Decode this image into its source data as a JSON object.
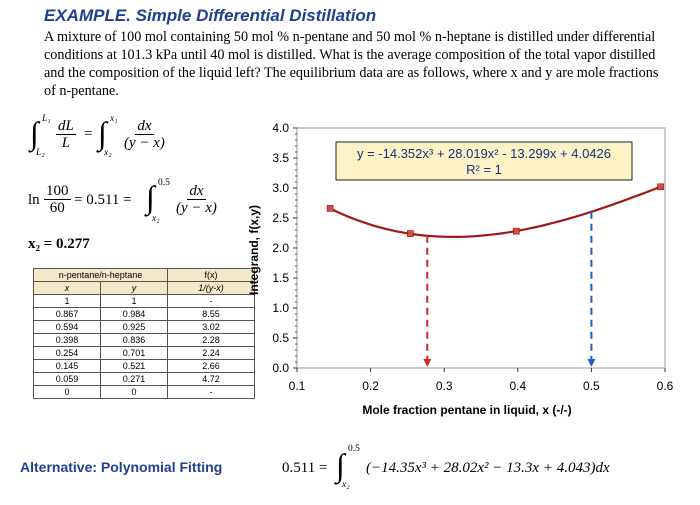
{
  "header": {
    "title": "EXAMPLE. Simple Differential Distillation",
    "problem_text": "A mixture of 100 mol containing 50 mol % n-pentane and 50 mol % n-heptane is distilled under differential conditions at 101.3 kPa until 40 mol is distilled. What is the average composition of the total vapor distilled and the composition of the liquid left? The equilibrium data are as follows, where x and y are mole fractions of n-pentane."
  },
  "equations": {
    "rayleigh": {
      "int_upper_1": "L₁",
      "int_lower_1": "L₂",
      "frac1_num": "dL",
      "frac1_den": "L",
      "int_upper_2": "x₁",
      "int_lower_2": "x₂",
      "frac2_num": "dx",
      "frac2_den": "(y − x)"
    },
    "log_eq": {
      "ln": "ln",
      "num": "100",
      "den": "60",
      "value": "= 0.511 =",
      "int_upper": "0.5",
      "int_lower": "x₂",
      "frac_num": "dx",
      "frac_den": "(y − x)"
    },
    "result": "x₂ = 0.277",
    "polynomial": {
      "lhs": "0.511 =",
      "int_upper": "0.5",
      "int_lower": "x₂",
      "integrand": "(−14.35x³ + 28.02x² − 13.3x + 4.043)dx"
    }
  },
  "table": {
    "headers": [
      "n-pentane/n-heptane",
      "f(x)"
    ],
    "subheaders": [
      "x",
      "y",
      "1/(y-x)"
    ],
    "rows": [
      [
        "1",
        "1",
        "-"
      ],
      [
        "0.867",
        "0.984",
        "8.55"
      ],
      [
        "0.594",
        "0.925",
        "3.02"
      ],
      [
        "0.398",
        "0.836",
        "2.28"
      ],
      [
        "0.254",
        "0.701",
        "2.24"
      ],
      [
        "0.145",
        "0.521",
        "2.66"
      ],
      [
        "0.059",
        "0.271",
        "4.72"
      ],
      [
        "0",
        "0",
        "-"
      ]
    ]
  },
  "chart_data": {
    "type": "scatter",
    "xlabel": "Mole fraction pentane in liquid, x (-/-)",
    "ylabel": "Integrand, f(x,y)",
    "xlim": [
      0.1,
      0.6
    ],
    "ylim": [
      0.0,
      4.0
    ],
    "x_ticks": [
      "0.1",
      "0.2",
      "0.3",
      "0.4",
      "0.5",
      "0.6"
    ],
    "y_ticks": [
      "0.0",
      "0.5",
      "1.0",
      "1.5",
      "2.0",
      "2.5",
      "3.0",
      "3.5",
      "4.0"
    ],
    "points": [
      {
        "x": 0.145,
        "y": 2.66
      },
      {
        "x": 0.254,
        "y": 2.24
      },
      {
        "x": 0.398,
        "y": 2.28
      },
      {
        "x": 0.594,
        "y": 3.02
      }
    ],
    "trendline": {
      "equation": "y = -14.352x³ + 28.019x² - 13.299x + 4.0426",
      "r2": "R² = 1",
      "coeffs": [
        -14.352,
        28.019,
        -13.299,
        4.0426
      ]
    },
    "markers": [
      {
        "x": 0.277,
        "color": "#d62728"
      },
      {
        "x": 0.5,
        "color": "#1f5fbf"
      }
    ],
    "curve_color": "#a01818",
    "point_color": "#d84a4a"
  },
  "alt_label": "Alternative: Polynomial Fitting"
}
